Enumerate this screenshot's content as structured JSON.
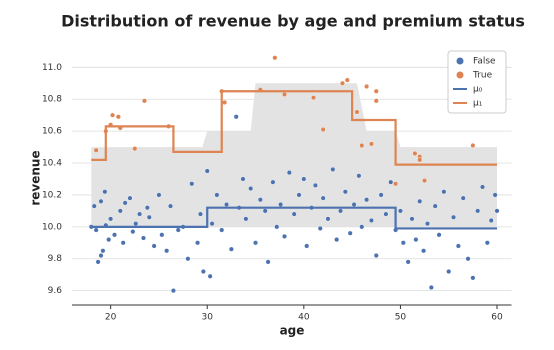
{
  "chart_data": {
    "type": "scatter",
    "title": "Distribution of revenue by age and premium status",
    "x_label": "age",
    "y_label": "revenue",
    "xlim": [
      16,
      61.5
    ],
    "ylim": [
      9.51,
      11.14
    ],
    "xticks": [
      20,
      30,
      40,
      50,
      60
    ],
    "yticks": [
      9.6,
      9.8,
      {
        "value": 10.0,
        "label": "10.0"
      },
      10.2,
      10.4,
      10.6,
      10.8,
      {
        "value": 11.0,
        "label": "11.0"
      }
    ],
    "grid": true,
    "legend": "upper right",
    "band": {
      "color": "#e3e3e3",
      "x": [
        18,
        29.5,
        30,
        34.5,
        35,
        45.5,
        46.5,
        49.5,
        50,
        60
      ],
      "upper": [
        10.5,
        10.5,
        10.6,
        10.6,
        10.9,
        10.9,
        10.6,
        10.6,
        10.5,
        10.5
      ],
      "lower": [
        10.0,
        10.0,
        10.0,
        10.0,
        10.0,
        10.0,
        10.0,
        10.0,
        10.0,
        10.0
      ]
    },
    "series": [
      {
        "name": "False",
        "color": "#4c72b0",
        "mark": "point",
        "x": [
          18,
          18.3,
          18.5,
          18.7,
          19,
          19,
          19.2,
          19.4,
          19.5,
          19.8,
          20,
          20.4,
          21,
          21.3,
          21.5,
          22,
          22.3,
          22.6,
          23,
          23.4,
          23.8,
          24,
          24.5,
          25,
          25.3,
          25.8,
          26.2,
          26.5,
          27,
          27.5,
          28,
          28.4,
          29,
          29.3,
          29.6,
          30,
          30.3,
          30.5,
          31,
          31.5,
          32,
          32.5,
          33,
          33.3,
          33.7,
          34,
          34.5,
          35,
          35.5,
          36,
          36.3,
          36.8,
          37.2,
          37.6,
          38,
          38.5,
          39,
          39.5,
          40,
          40.3,
          40.8,
          41.2,
          41.7,
          42,
          42.5,
          43,
          43.4,
          43.8,
          44.3,
          44.8,
          45.2,
          45.7,
          46,
          46.5,
          47,
          47.5,
          48,
          48.5,
          49,
          49.5,
          50,
          50.3,
          50.8,
          51.2,
          51.6,
          52,
          52.4,
          52.8,
          53.2,
          53.6,
          54,
          54.5,
          55,
          55.5,
          56,
          56.5,
          57,
          57.5,
          58,
          58.5,
          59,
          59.4,
          59.8,
          60
        ],
        "values": [
          10.0,
          10.13,
          9.98,
          9.78,
          9.82,
          10.16,
          9.85,
          10.22,
          10.01,
          9.92,
          10.05,
          9.95,
          10.1,
          9.9,
          10.15,
          10.18,
          9.97,
          10.02,
          10.08,
          9.93,
          10.12,
          10.06,
          9.88,
          10.2,
          9.95,
          9.85,
          10.13,
          9.6,
          9.98,
          10.0,
          9.8,
          10.27,
          9.9,
          10.08,
          9.72,
          10.35,
          9.69,
          10.02,
          10.2,
          9.98,
          10.14,
          9.86,
          10.69,
          10.12,
          10.3,
          10.05,
          10.24,
          9.9,
          10.17,
          10.1,
          9.78,
          10.28,
          10.0,
          10.14,
          9.94,
          10.34,
          10.08,
          10.2,
          10.3,
          9.88,
          10.12,
          10.26,
          9.99,
          10.18,
          10.05,
          10.36,
          9.92,
          10.1,
          10.22,
          9.96,
          10.14,
          10.32,
          10.0,
          10.17,
          10.04,
          9.82,
          10.2,
          10.08,
          10.28,
          9.98,
          10.1,
          9.9,
          9.78,
          10.05,
          9.92,
          10.16,
          9.85,
          10.02,
          9.62,
          10.13,
          9.95,
          10.22,
          9.72,
          10.06,
          9.88,
          10.18,
          9.8,
          9.68,
          10.1,
          10.25,
          9.9,
          10.04,
          10.2,
          10.1
        ]
      },
      {
        "name": "True",
        "color": "#dd8452",
        "mark": "point",
        "x": [
          18.5,
          19.5,
          20,
          20.2,
          20.8,
          21,
          22.5,
          23.5,
          26,
          31.5,
          31.8,
          35.5,
          37,
          38,
          41,
          42,
          44,
          44.5,
          45.5,
          46,
          46.5,
          47,
          47.5,
          47.5,
          49.5,
          51.5,
          52,
          52,
          52.5,
          57.5
        ],
        "values": [
          10.48,
          10.6,
          10.64,
          10.7,
          10.69,
          10.62,
          10.49,
          10.79,
          10.63,
          10.85,
          10.78,
          10.86,
          11.06,
          10.83,
          10.81,
          10.61,
          10.9,
          10.92,
          10.72,
          10.51,
          10.88,
          10.52,
          10.85,
          10.79,
          10.27,
          10.46,
          10.44,
          10.42,
          10.29,
          10.51
        ]
      },
      {
        "name": "μ₀",
        "color": "#4c72b0",
        "mark": "line",
        "x": [
          18,
          30,
          30,
          49.5,
          49.5,
          60
        ],
        "values": [
          10.0,
          10.0,
          10.12,
          10.12,
          9.99,
          9.99
        ]
      },
      {
        "name": "μ₁",
        "color": "#dd8452",
        "mark": "line",
        "x": [
          18,
          19.5,
          19.5,
          26.5,
          26.5,
          31.5,
          31.5,
          45,
          45,
          49.5,
          49.5,
          60
        ],
        "values": [
          10.42,
          10.42,
          10.63,
          10.63,
          10.47,
          10.47,
          10.85,
          10.85,
          10.67,
          10.67,
          10.39,
          10.39
        ]
      }
    ]
  }
}
